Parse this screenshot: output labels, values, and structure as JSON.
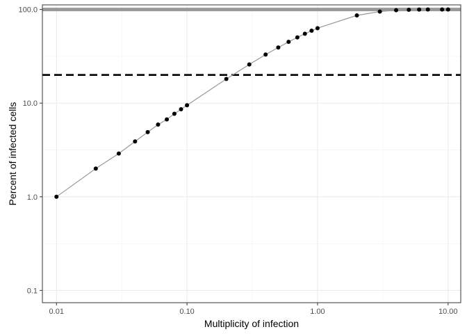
{
  "chart_data": {
    "type": "scatter",
    "xlabel": "Multiplicity of infection",
    "ylabel": "Percent of infected cells",
    "x_scale": "log10",
    "y_scale": "log10",
    "xlim": [
      0.0078,
      12.5
    ],
    "ylim": [
      0.074,
      112
    ],
    "x_ticks": [
      {
        "value": 0.01,
        "label": "0.01"
      },
      {
        "value": 0.1,
        "label": "0.10"
      },
      {
        "value": 1,
        "label": "1.00"
      },
      {
        "value": 10,
        "label": "10.00"
      }
    ],
    "y_ticks": [
      {
        "value": 0.1,
        "label": "0.1"
      },
      {
        "value": 1,
        "label": "1.0"
      },
      {
        "value": 10,
        "label": "10.0"
      },
      {
        "value": 100,
        "label": "100.0"
      }
    ],
    "x_minor": [
      0.0316,
      0.316,
      3.16
    ],
    "y_minor": [
      0.316,
      3.16,
      31.6
    ],
    "grid": true,
    "reference_lines": [
      {
        "name": "threshold-100-line",
        "y": 100,
        "color": "#999999",
        "style": "solid"
      },
      {
        "name": "threshold-20-line",
        "y": 20,
        "color": "#000000",
        "style": "dashed"
      }
    ],
    "curve_color": "#999999",
    "point_color": "#000000",
    "series": [
      {
        "name": "infected-cells",
        "x": [
          0.01,
          0.02,
          0.03,
          0.04,
          0.05,
          0.06,
          0.07,
          0.08,
          0.09,
          0.1,
          0.2,
          0.3,
          0.4,
          0.5,
          0.6,
          0.7,
          0.8,
          0.9,
          1,
          2,
          3,
          4,
          5,
          6,
          7,
          9,
          10
        ],
        "y": [
          1.0,
          2.0,
          2.9,
          3.9,
          4.9,
          5.9,
          6.7,
          7.7,
          8.6,
          9.5,
          18.1,
          25.9,
          33.0,
          39.3,
          45.1,
          50.3,
          55.1,
          59.3,
          63.2,
          86.5,
          95.0,
          98.2,
          99.3,
          99.75,
          99.9,
          99.99,
          100.0
        ]
      }
    ]
  }
}
